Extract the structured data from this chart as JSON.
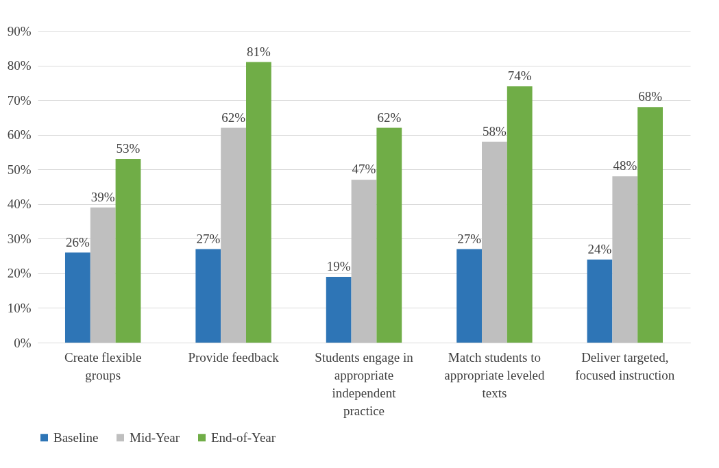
{
  "chart_data": {
    "type": "bar",
    "categories": [
      "Create flexible groups",
      "Provide feedback",
      "Students engage in appropriate independent practice",
      "Match students to appropriate leveled texts",
      "Deliver targeted, focused instruction"
    ],
    "series": [
      {
        "name": "Baseline",
        "color": "#2e75b6",
        "values": [
          26,
          27,
          19,
          27,
          24
        ]
      },
      {
        "name": "Mid-Year",
        "color": "#bfbfbf",
        "values": [
          39,
          62,
          47,
          58,
          48
        ]
      },
      {
        "name": "End-of-Year",
        "color": "#70ad47",
        "values": [
          53,
          81,
          62,
          74,
          68
        ]
      }
    ],
    "value_labels": [
      [
        "26%",
        "27%",
        "19%",
        "27%",
        "24%"
      ],
      [
        "39%",
        "62%",
        "47%",
        "58%",
        "48%"
      ],
      [
        "53%",
        "81%",
        "62%",
        "74%",
        "68%"
      ]
    ],
    "ylim": [
      0,
      90
    ],
    "yticks": [
      {
        "value": 0,
        "label": "0%"
      },
      {
        "value": 10,
        "label": "10%"
      },
      {
        "value": 20,
        "label": "20%"
      },
      {
        "value": 30,
        "label": "30%"
      },
      {
        "value": 40,
        "label": "40%"
      },
      {
        "value": 50,
        "label": "50%"
      },
      {
        "value": 60,
        "label": "60%"
      },
      {
        "value": 70,
        "label": "70%"
      },
      {
        "value": 80,
        "label": "80%"
      },
      {
        "value": 90,
        "label": "90%"
      }
    ],
    "grid": "y",
    "legend": "bottom"
  }
}
